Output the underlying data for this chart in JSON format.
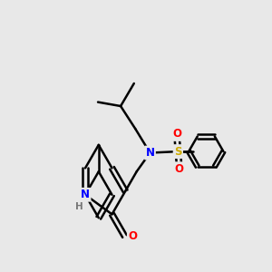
{
  "background_color": "#e8e8e8",
  "bond_color": "#000000",
  "bond_width": 1.8,
  "atom_colors": {
    "N": "#0000ff",
    "O": "#ff0000",
    "S": "#ccaa00",
    "H": "#888888",
    "C": "#000000"
  },
  "figsize": [
    3.0,
    3.0
  ],
  "dpi": 100
}
